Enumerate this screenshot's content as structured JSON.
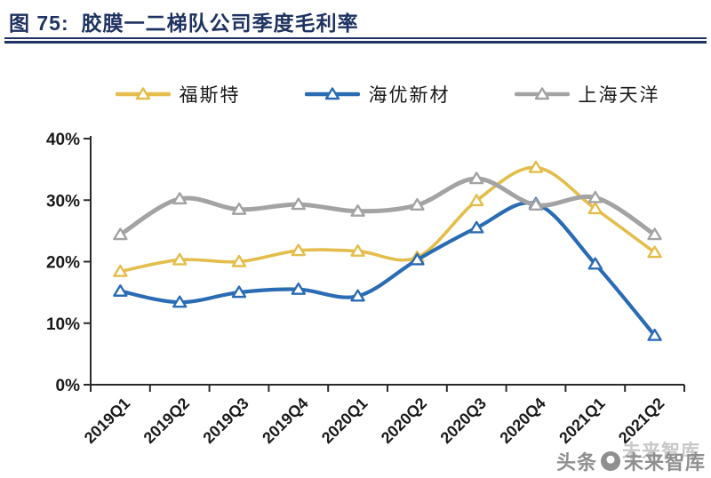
{
  "header": {
    "figure_label": "图 75:",
    "title": "胶膜一二梯队公司季度毛利率",
    "title_color": "#1E3361"
  },
  "chart_data": {
    "type": "line",
    "title": "胶膜一二梯队公司季度毛利率",
    "categories": [
      "2019Q1",
      "2019Q2",
      "2019Q3",
      "2019Q4",
      "2020Q1",
      "2020Q2",
      "2020Q3",
      "2020Q4",
      "2021Q1",
      "2021Q2"
    ],
    "series": [
      {
        "name": "福斯特",
        "color": "#E4BD4B",
        "line_width": 3.6,
        "values": [
          18.4,
          20.3,
          20.0,
          21.8,
          21.7,
          20.7,
          29.9,
          35.3,
          28.6,
          21.5
        ]
      },
      {
        "name": "海优新材",
        "color": "#2A6CB4",
        "line_width": 4.2,
        "values": [
          15.2,
          13.4,
          15.0,
          15.5,
          14.4,
          20.3,
          25.5,
          29.4,
          19.6,
          8.0
        ]
      },
      {
        "name": "上海天洋",
        "color": "#A3A3A3",
        "line_width": 5.0,
        "values": [
          24.4,
          30.2,
          28.5,
          29.3,
          28.2,
          29.2,
          33.5,
          29.2,
          30.4,
          24.4
        ]
      }
    ],
    "xlabel": "",
    "ylabel": "",
    "ylim": [
      0,
      40
    ],
    "ytick_step": 10,
    "yticks": [
      "0%",
      "10%",
      "20%",
      "30%",
      "40%"
    ],
    "legend_position": "top",
    "grid": false,
    "marker": "triangle-up-hollow",
    "line_style": "smooth",
    "axis_color": "#2b2b2b",
    "tick_label_color": "#1a1a1a"
  },
  "watermark": {
    "ghost": "未来智库",
    "main_prefix": "头条",
    "main_suffix": "未来智库",
    "logo": "circle-logo-icon"
  }
}
